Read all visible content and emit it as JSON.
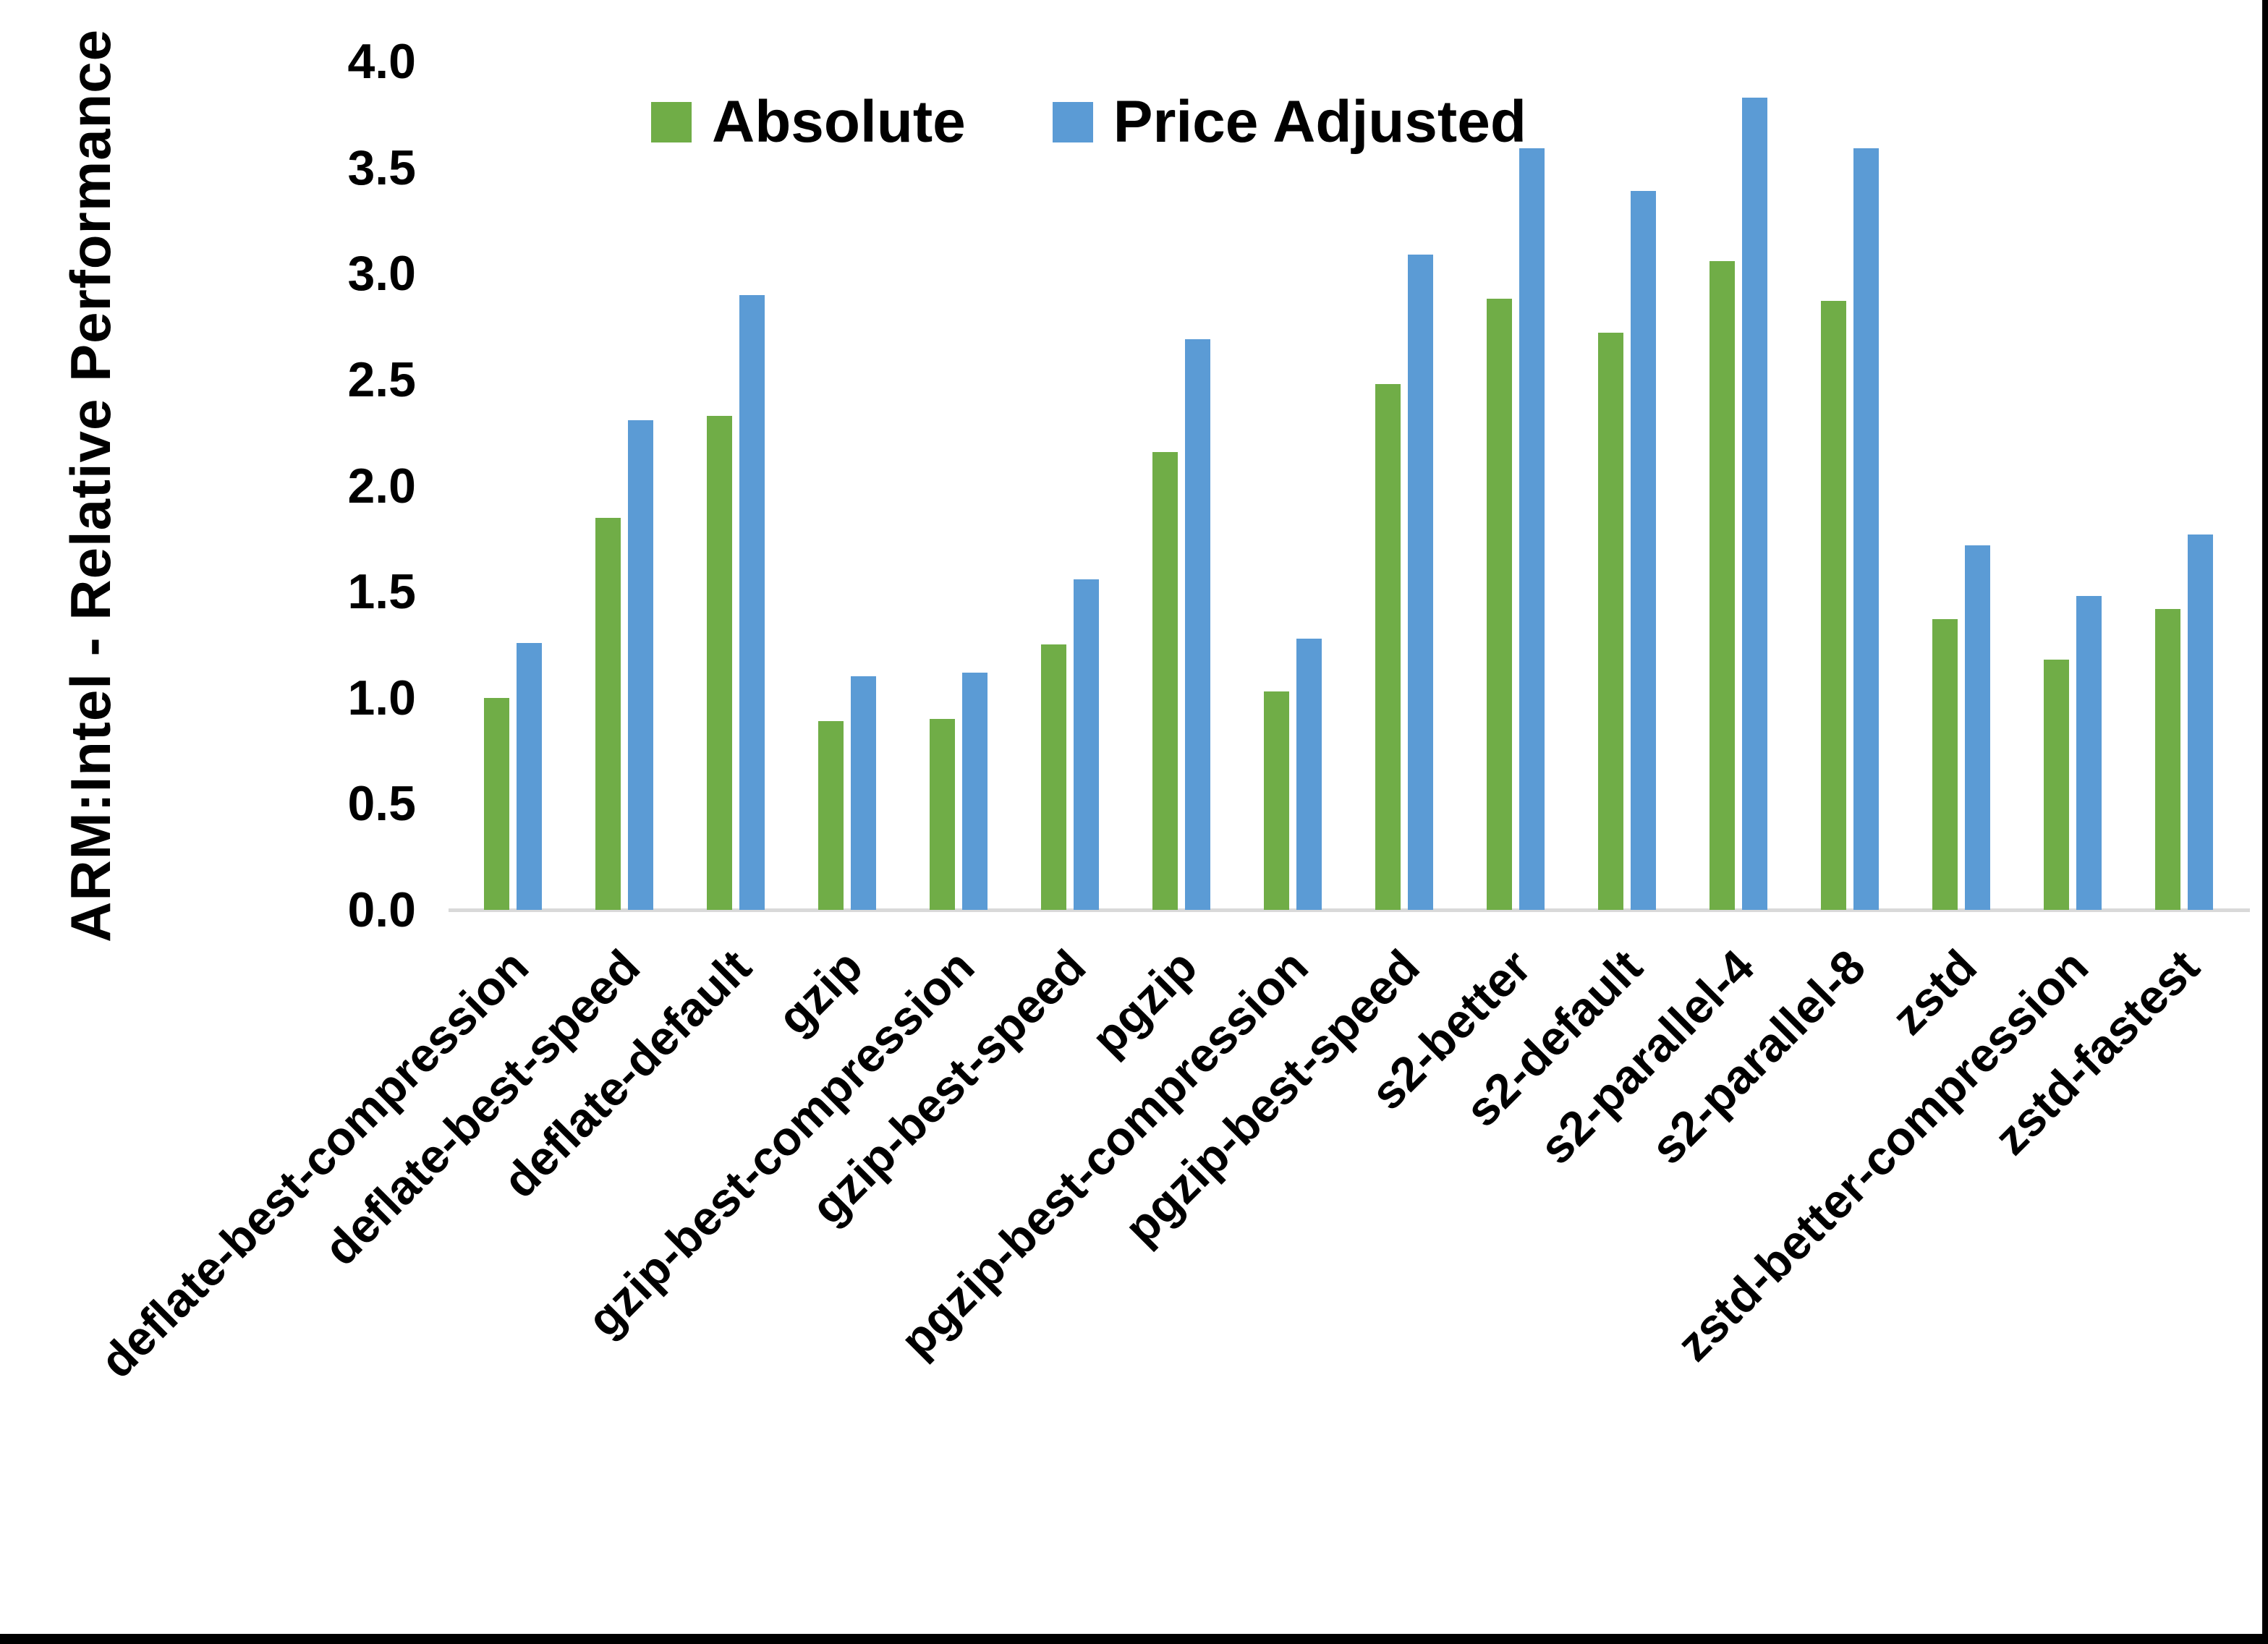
{
  "chart_data": {
    "type": "bar",
    "title": "",
    "ylabel": "ARM:Intel - Relative Performance",
    "xlabel": "",
    "ylim": [
      0.0,
      4.0
    ],
    "ytick_step": 0.5,
    "grid": false,
    "legend_position": "top-center",
    "categories": [
      "deflate-best-compression",
      "deflate-best-speed",
      "deflate-default",
      "gzip",
      "gzip-best-compression",
      "gzip-best-speed",
      "pgzip",
      "pgzip-best-compression",
      "pgzip-best-speed",
      "s2-better",
      "s2-default",
      "s2-parallel-4",
      "s2-parallel-8",
      "zstd",
      "zstd-better-compression",
      "zstd-fastest"
    ],
    "series": [
      {
        "name": "Absolute",
        "color": "#70AD47",
        "values": [
          1.0,
          1.85,
          2.33,
          0.89,
          0.9,
          1.25,
          2.16,
          1.03,
          2.48,
          2.88,
          2.72,
          3.06,
          2.87,
          1.37,
          1.18,
          1.42
        ]
      },
      {
        "name": "Price Adjusted",
        "color": "#5B9BD5",
        "values": [
          1.26,
          2.31,
          2.9,
          1.1,
          1.12,
          1.56,
          2.69,
          1.28,
          3.09,
          3.59,
          3.39,
          3.83,
          3.59,
          1.72,
          1.48,
          1.77
        ]
      }
    ],
    "axis_line_color": "#d9d9d9",
    "border_color": "#000000"
  }
}
